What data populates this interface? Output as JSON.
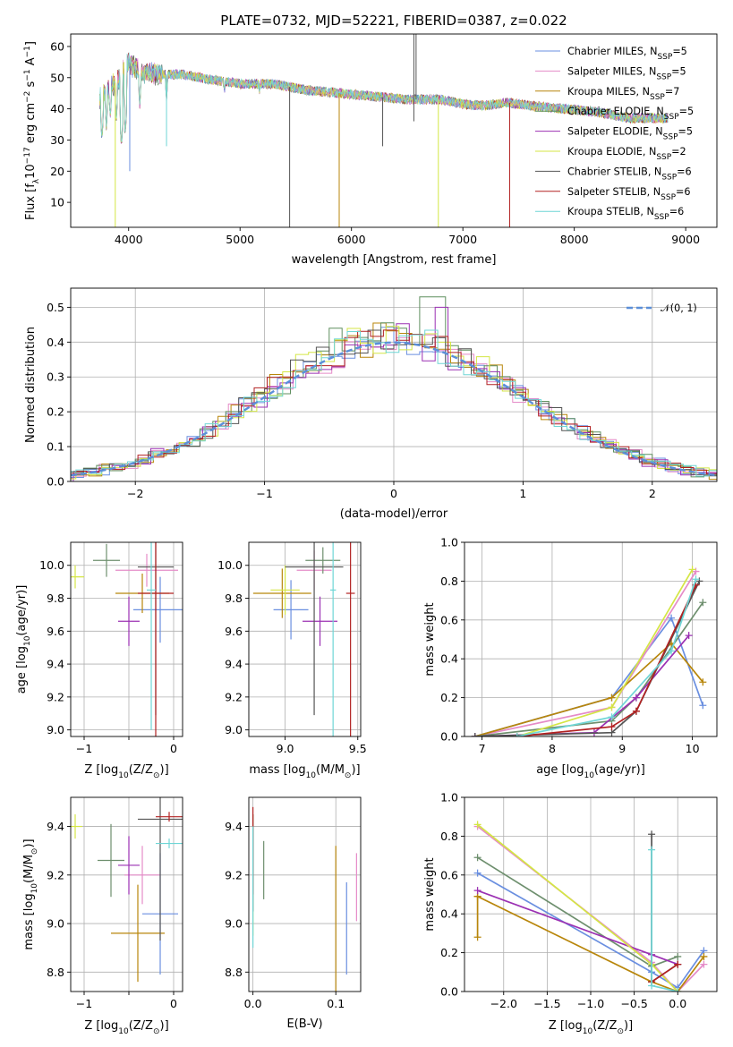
{
  "colors": [
    "#6a8fe0",
    "#e58bc8",
    "#b8860b",
    "#6e8f6e",
    "#9b30b3",
    "#d4e645",
    "#555555",
    "#b22222",
    "#6fd6d6"
  ],
  "legend_colors": [
    "#6a8fe0",
    "#e58bc8",
    "#b8860b",
    "#5f8f5f",
    "#9b30b3",
    "#d4e645",
    "#555555",
    "#b22222",
    "#6fd6d6"
  ],
  "series_names": [
    "Chabrier MILES, N",
    "Salpeter MILES, N",
    "Kroupa MILES, N",
    "Chabrier ELODIE, N",
    "Salpeter ELODIE, N",
    "Kroupa ELODIE, N",
    "Chabrier STELIB, N",
    "Salpeter STELIB, N",
    "Kroupa STELIB, N"
  ],
  "series_sub": "SSP",
  "series_nssp": [
    "=5",
    "=5",
    "=7",
    "=5",
    "=5",
    "=2",
    "=6",
    "=6",
    "=6"
  ],
  "chart_data": [
    {
      "id": "spectrum",
      "type": "line",
      "title": "PLATE=0732, MJD=52221, FIBERID=0387, z=0.022",
      "xlabel": "wavelength [Angstrom, rest frame]",
      "ylabel_parts": [
        "Flux [f",
        "λ",
        "10",
        "−17",
        " erg cm",
        "−2",
        " s",
        "−1",
        " A",
        "−1",
        "]"
      ],
      "xlim": [
        3480,
        9280
      ],
      "ylim": [
        2,
        64
      ],
      "xticks": [
        4000,
        5000,
        6000,
        7000,
        8000,
        9000
      ],
      "xticklabels": [
        "4000",
        "5000",
        "6000",
        "7000",
        "8000",
        "9000"
      ],
      "yticks": [
        10,
        20,
        30,
        40,
        50,
        60
      ],
      "yticklabels": [
        "10",
        "20",
        "30",
        "40",
        "50",
        "60"
      ],
      "x_range": [
        3740,
        8840
      ],
      "continuum": [
        [
          3740,
          44
        ],
        [
          3900,
          49
        ],
        [
          4000,
          55
        ],
        [
          4100,
          52
        ],
        [
          4300,
          51
        ],
        [
          4500,
          51
        ],
        [
          4700,
          49.5
        ],
        [
          5000,
          48
        ],
        [
          5300,
          48
        ],
        [
          5600,
          46
        ],
        [
          5900,
          45
        ],
        [
          6200,
          44
        ],
        [
          6500,
          43
        ],
        [
          6800,
          43
        ],
        [
          7000,
          41.5
        ],
        [
          7200,
          41
        ],
        [
          7400,
          42
        ],
        [
          7600,
          41
        ],
        [
          7900,
          40
        ],
        [
          8200,
          39
        ],
        [
          8500,
          37
        ],
        [
          8840,
          37
        ]
      ],
      "absorption_lines": [
        [
          3760,
          29
        ],
        [
          3800,
          33
        ],
        [
          3835,
          36
        ],
        [
          3890,
          36
        ],
        [
          3935,
          27
        ],
        [
          3970,
          31
        ],
        [
          4100,
          40
        ],
        [
          4340,
          42
        ],
        [
          4860,
          44
        ],
        [
          5175,
          44
        ],
        [
          5890,
          44
        ]
      ],
      "deep_spikes": [
        [
          3880,
          0
        ],
        [
          4010,
          20
        ],
        [
          4340,
          28
        ],
        [
          5445,
          0
        ],
        [
          5890,
          0
        ],
        [
          6280,
          28
        ],
        [
          6560,
          36
        ],
        [
          6780,
          0
        ],
        [
          7420,
          0
        ]
      ],
      "up_spikes": [
        [
          6560,
          64
        ],
        [
          6580,
          64
        ]
      ]
    },
    {
      "id": "residual-hist",
      "type": "bar",
      "xlabel": "(data-model)/error",
      "ylabel": "Normed distribution",
      "xlim": [
        -2.5,
        2.5
      ],
      "ylim": [
        0,
        0.555
      ],
      "xticks": [
        -2,
        -1,
        0,
        1,
        2
      ],
      "xticklabels": [
        "−2",
        "−1",
        "0",
        "1",
        "2"
      ],
      "yticks": [
        0.0,
        0.1,
        0.2,
        0.3,
        0.4,
        0.5
      ],
      "yticklabels": [
        "0.0",
        "0.1",
        "0.2",
        "0.3",
        "0.4",
        "0.5"
      ],
      "bin_width": 0.1,
      "gaussian_label": "𝒩(0, 1)",
      "spike_bins": [
        [
          0.25,
          3,
          0.53
        ],
        [
          0.3,
          4,
          0.5
        ],
        [
          -0.5,
          3,
          0.44
        ]
      ]
    },
    {
      "id": "age-vs-Z",
      "type": "scatter",
      "xlabel": "Z [log",
      "xlabel_sub": "10",
      "xlabel_tail": "(Z/Z",
      "xlabel_end": ")]",
      "ylabel": "age  [log",
      "ylabel_sub": "10",
      "ylabel_tail": "(age/yr)]",
      "xlim": [
        -1.15,
        0.1
      ],
      "ylim": [
        8.96,
        10.14
      ],
      "xticks": [
        -1,
        -0.5,
        0
      ],
      "xticklabels": [
        "−1",
        "",
        ""
      ],
      "xticklabels_show": [
        "−1",
        "0"
      ],
      "yticks": [
        9.0,
        9.2,
        9.4,
        9.6,
        9.8,
        10.0
      ],
      "yticklabels": [
        "9.0",
        "9.2",
        "9.4",
        "9.6",
        "9.8",
        "10.0"
      ],
      "points": [
        {
          "x": -0.15,
          "y": 9.73,
          "xe": 0.3,
          "ye": 0.2,
          "c": 0
        },
        {
          "x": -0.3,
          "y": 9.97,
          "xe": 0.35,
          "ye": 0.1,
          "c": 1
        },
        {
          "x": -0.35,
          "y": 9.83,
          "xe": 0.3,
          "ye": 0.12,
          "c": 2
        },
        {
          "x": -0.75,
          "y": 10.03,
          "xe": 0.15,
          "ye": 0.1,
          "c": 3
        },
        {
          "x": -0.5,
          "y": 9.66,
          "xe": 0.12,
          "ye": 0.15,
          "c": 4
        },
        {
          "x": -1.1,
          "y": 9.93,
          "xe": 0.1,
          "ye": 0.07,
          "c": 5
        },
        {
          "x": -0.2,
          "y": 9.99,
          "xe": 0.2,
          "ye": 0.9,
          "c": 6
        },
        {
          "x": -0.2,
          "y": 9.83,
          "xe": 0.2,
          "ye": 0.9,
          "c": 7
        },
        {
          "x": -0.25,
          "y": 9.85,
          "xe": 0.05,
          "ye": 0.85,
          "c": 8
        }
      ]
    },
    {
      "id": "age-vs-mass",
      "type": "scatter",
      "xlabel": "mass [log",
      "xlabel_sub": "10",
      "xlabel_tail": "(M/M",
      "xlabel_end": ")]",
      "xlim": [
        8.75,
        9.52
      ],
      "ylim": [
        8.96,
        10.14
      ],
      "xticks": [
        9.0,
        9.5
      ],
      "xticklabels": [
        "9.0",
        "9.5"
      ],
      "yticks": [
        9.0,
        9.2,
        9.4,
        9.6,
        9.8,
        10.0
      ],
      "yticklabels": [
        "9.0",
        "9.2",
        "9.4",
        "9.6",
        "9.8",
        "10.0"
      ],
      "points": [
        {
          "x": 9.04,
          "y": 9.73,
          "xe": 0.12,
          "ye": 0.18,
          "c": 0
        },
        {
          "x": 9.2,
          "y": 9.97,
          "xe": 0.12,
          "ye": 0.12,
          "c": 1
        },
        {
          "x": 8.98,
          "y": 9.83,
          "xe": 0.2,
          "ye": 0.15,
          "c": 2
        },
        {
          "x": 9.26,
          "y": 10.03,
          "xe": 0.12,
          "ye": 0.08,
          "c": 3
        },
        {
          "x": 9.24,
          "y": 9.66,
          "xe": 0.12,
          "ye": 0.15,
          "c": 4
        },
        {
          "x": 9.0,
          "y": 9.85,
          "xe": 0.1,
          "ye": 0.15,
          "c": 5
        },
        {
          "x": 9.2,
          "y": 9.99,
          "xe": 0.2,
          "ye": 0.9,
          "c": 6
        },
        {
          "x": 9.45,
          "y": 9.83,
          "xe": 0.03,
          "ye": 0.9,
          "c": 7
        },
        {
          "x": 9.33,
          "y": 9.85,
          "xe": 0.02,
          "ye": 0.9,
          "c": 8
        }
      ]
    },
    {
      "id": "weight-vs-age",
      "type": "line",
      "xlabel": "age  [log",
      "xlabel_sub": "10",
      "xlabel_tail": "(age/yr)]",
      "ylabel": "mass weight",
      "xlim": [
        6.75,
        10.35
      ],
      "ylim": [
        0,
        1
      ],
      "xticks": [
        7,
        8,
        9,
        10
      ],
      "xticklabels": [
        "7",
        "8",
        "9",
        "10"
      ],
      "yticks": [
        0.0,
        0.2,
        0.4,
        0.6,
        0.8,
        1.0
      ],
      "yticklabels": [
        "0.0",
        "0.2",
        "0.4",
        "0.6",
        "0.8",
        "1.0"
      ],
      "lines": [
        {
          "c": 0,
          "pts": [
            [
              6.9,
              0.0
            ],
            [
              8.85,
              0.2
            ],
            [
              9.7,
              0.61
            ],
            [
              10.15,
              0.16
            ]
          ]
        },
        {
          "c": 1,
          "pts": [
            [
              6.9,
              0.0
            ],
            [
              8.85,
              0.15
            ],
            [
              10.05,
              0.85
            ]
          ]
        },
        {
          "c": 2,
          "pts": [
            [
              6.9,
              0.0
            ],
            [
              8.85,
              0.2
            ],
            [
              9.7,
              0.48
            ],
            [
              10.15,
              0.28
            ]
          ]
        },
        {
          "c": 3,
          "pts": [
            [
              6.9,
              0.0
            ],
            [
              8.85,
              0.08
            ],
            [
              9.2,
              0.2
            ],
            [
              10.15,
              0.69
            ]
          ]
        },
        {
          "c": 4,
          "pts": [
            [
              6.9,
              0.0
            ],
            [
              8.6,
              0.02
            ],
            [
              9.2,
              0.2
            ],
            [
              9.95,
              0.52
            ]
          ]
        },
        {
          "c": 5,
          "pts": [
            [
              7.5,
              0.0
            ],
            [
              8.85,
              0.15
            ],
            [
              10.0,
              0.86
            ]
          ]
        },
        {
          "c": 6,
          "pts": [
            [
              6.9,
              0.0
            ],
            [
              8.85,
              0.02
            ],
            [
              9.2,
              0.13
            ],
            [
              10.1,
              0.8
            ]
          ]
        },
        {
          "c": 7,
          "pts": [
            [
              7.5,
              0.0
            ],
            [
              8.85,
              0.05
            ],
            [
              9.2,
              0.13
            ],
            [
              10.05,
              0.78
            ]
          ]
        },
        {
          "c": 8,
          "pts": [
            [
              7.5,
              0.0
            ],
            [
              8.85,
              0.1
            ],
            [
              9.7,
              0.44
            ],
            [
              10.05,
              0.81
            ]
          ]
        }
      ]
    },
    {
      "id": "mass-vs-Z",
      "type": "scatter",
      "xlabel": "Z [log",
      "xlabel_sub": "10",
      "xlabel_tail": "(Z/Z",
      "xlabel_end": ")]",
      "ylabel": "mass [log",
      "ylabel_sub": "10",
      "ylabel_tail": "(M/M",
      "ylabel_end": ")]",
      "xlim": [
        -1.15,
        0.1
      ],
      "ylim": [
        8.72,
        9.52
      ],
      "xticks": [
        -1,
        -0.5,
        0
      ],
      "xticklabels_show": [
        "−1",
        "0"
      ],
      "yticks": [
        8.8,
        9.0,
        9.2,
        9.4
      ],
      "yticklabels": [
        "8.8",
        "9.0",
        "9.2",
        "9.4"
      ],
      "points": [
        {
          "x": -0.15,
          "y": 9.04,
          "xe": 0.2,
          "ye": 0.25,
          "c": 0
        },
        {
          "x": -0.35,
          "y": 9.2,
          "xe": 0.2,
          "ye": 0.12,
          "c": 1
        },
        {
          "x": -0.4,
          "y": 8.96,
          "xe": 0.3,
          "ye": 0.2,
          "c": 2
        },
        {
          "x": -0.7,
          "y": 9.26,
          "xe": 0.15,
          "ye": 0.15,
          "c": 3
        },
        {
          "x": -0.5,
          "y": 9.24,
          "xe": 0.12,
          "ye": 0.12,
          "c": 4
        },
        {
          "x": -1.1,
          "y": 9.4,
          "xe": 0.08,
          "ye": 0.05,
          "c": 5
        },
        {
          "x": -0.15,
          "y": 9.43,
          "xe": 0.25,
          "ye": 0.5,
          "c": 6
        },
        {
          "x": -0.05,
          "y": 9.44,
          "xe": 0.15,
          "ye": 0.02,
          "c": 7
        },
        {
          "x": -0.05,
          "y": 9.33,
          "xe": 0.15,
          "ye": 0.02,
          "c": 8
        }
      ]
    },
    {
      "id": "mass-vs-EBV",
      "type": "scatter",
      "xlabel": "E(B-V)",
      "xlim": [
        -0.005,
        0.13
      ],
      "ylim": [
        8.72,
        9.52
      ],
      "xticks": [
        0.0,
        0.1
      ],
      "xticklabels": [
        "0.0",
        "0.1"
      ],
      "yticks": [
        8.8,
        9.0,
        9.2,
        9.4
      ],
      "yticklabels": [
        "8.8",
        "9.0",
        "9.2",
        "9.4"
      ],
      "points": [
        {
          "x": 0.113,
          "y": 8.98,
          "ye": 0.19,
          "c": 0
        },
        {
          "x": 0.125,
          "y": 9.15,
          "ye": 0.14,
          "c": 1
        },
        {
          "x": 0.1,
          "y": 9.0,
          "ye": 0.32,
          "c": 2
        },
        {
          "x": 0.013,
          "y": 9.22,
          "ye": 0.12,
          "c": 3
        },
        {
          "x": 0.0,
          "y": 9.3,
          "ye": 0.1,
          "c": 4
        },
        {
          "x": 0.0,
          "y": 9.2,
          "ye": 0.25,
          "c": 5
        },
        {
          "x": 0.0,
          "y": 9.25,
          "ye": 0.2,
          "c": 6
        },
        {
          "x": 0.0,
          "y": 9.3,
          "ye": 0.18,
          "c": 7
        },
        {
          "x": 0.0,
          "y": 9.15,
          "ye": 0.25,
          "c": 8
        }
      ]
    },
    {
      "id": "weight-vs-Z",
      "type": "line",
      "xlabel": "Z [log",
      "xlabel_sub": "10",
      "xlabel_tail": "(Z/Z",
      "xlabel_end": ")]",
      "ylabel": "mass weight",
      "xlim": [
        -2.45,
        0.45
      ],
      "ylim": [
        0,
        1
      ],
      "xticks": [
        -2.0,
        -1.5,
        -1.0,
        -0.5,
        0.0
      ],
      "xticklabels": [
        "−2.0",
        "−1.5",
        "−1.0",
        "−0.5",
        "0.0"
      ],
      "yticks": [
        0.0,
        0.2,
        0.4,
        0.6,
        0.8,
        1.0
      ],
      "yticklabels": [
        "0.0",
        "0.2",
        "0.4",
        "0.6",
        "0.8",
        "1.0"
      ],
      "lines": [
        {
          "c": 0,
          "pts": [
            [
              -2.3,
              0.61
            ],
            [
              -0.3,
              0.1
            ],
            [
              0.0,
              0.02
            ],
            [
              0.3,
              0.21
            ]
          ]
        },
        {
          "c": 1,
          "pts": [
            [
              -2.3,
              0.85
            ],
            [
              -0.3,
              0.15
            ],
            [
              0.0,
              0.0
            ],
            [
              0.3,
              0.14
            ]
          ]
        },
        {
          "c": 2,
          "pts": [
            [
              -2.3,
              0.49
            ],
            [
              -2.3,
              0.28
            ],
            [
              -2.3,
              0.49
            ],
            [
              -0.3,
              0.05
            ],
            [
              0.0,
              0.0
            ],
            [
              0.3,
              0.18
            ]
          ]
        },
        {
          "c": 3,
          "pts": [
            [
              -2.3,
              0.69
            ],
            [
              -0.3,
              0.13
            ],
            [
              0.0,
              0.18
            ]
          ]
        },
        {
          "c": 4,
          "pts": [
            [
              -2.3,
              0.52
            ],
            [
              -0.3,
              0.19
            ],
            [
              0.0,
              0.14
            ]
          ]
        },
        {
          "c": 5,
          "pts": [
            [
              -2.3,
              0.86
            ],
            [
              -0.3,
              0.14
            ],
            [
              0.0,
              0.0
            ]
          ]
        },
        {
          "c": 6,
          "pts": [
            [
              -0.3,
              0.81
            ],
            [
              -0.3,
              0.05
            ],
            [
              0.0,
              0.14
            ]
          ]
        },
        {
          "c": 7,
          "pts": [
            [
              -0.3,
              0.05
            ],
            [
              0.0,
              0.14
            ]
          ]
        },
        {
          "c": 8,
          "pts": [
            [
              -0.3,
              0.73
            ],
            [
              -0.3,
              0.03
            ],
            [
              0.0,
              0.0
            ]
          ]
        }
      ]
    }
  ]
}
